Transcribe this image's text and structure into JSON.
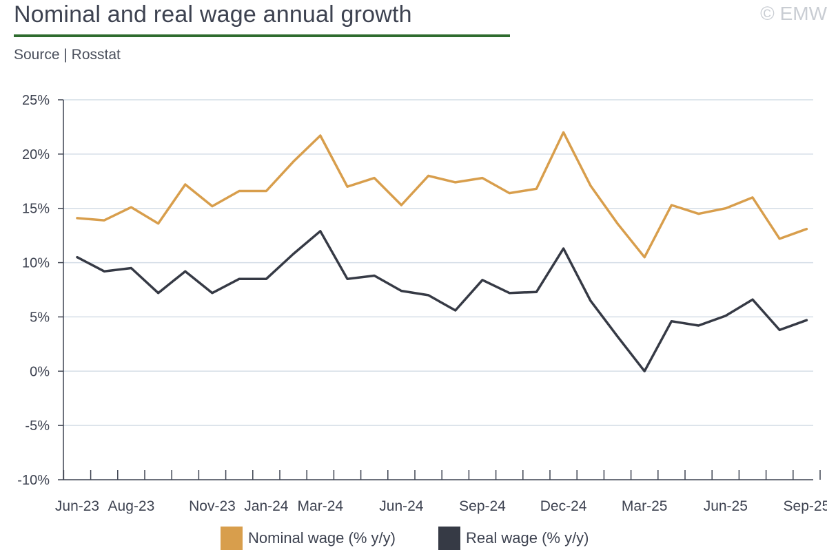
{
  "header": {
    "title": "Nominal and real wage annual growth",
    "source": "Source | Rosstat",
    "copyright": "© EMW"
  },
  "colors": {
    "nominal": "#d89e4c",
    "real": "#363a45",
    "grid": "#d4dde6",
    "axis": "#3d4250",
    "accent_rule": "#2e6b2e"
  },
  "chart_data": {
    "type": "line",
    "title": "Nominal and real wage annual growth",
    "xlabel": "",
    "ylabel": "",
    "ylim": [
      -10,
      25
    ],
    "yticks": [
      -10,
      -5,
      0,
      5,
      10,
      15,
      20,
      25
    ],
    "ytick_labels": [
      "-10%",
      "-5%",
      "0%",
      "5%",
      "10%",
      "15%",
      "20%",
      "25%"
    ],
    "x": [
      "Jun-23",
      "Jul-23",
      "Aug-23",
      "Sep-23",
      "Oct-23",
      "Nov-23",
      "Dec-23",
      "Jan-24",
      "Feb-24",
      "Mar-24",
      "Apr-24",
      "May-24",
      "Jun-24",
      "Jul-24",
      "Aug-24",
      "Sep-24",
      "Oct-24",
      "Nov-24",
      "Dec-24",
      "Jan-25",
      "Feb-25",
      "Mar-25",
      "Apr-25",
      "May-25",
      "Jun-25",
      "Jul-25",
      "Aug-25",
      "Sep-25"
    ],
    "xtick_labels": [
      {
        "index": 0,
        "label": "Jun-23"
      },
      {
        "index": 2,
        "label": "Aug-23"
      },
      {
        "index": 5,
        "label": "Nov-23"
      },
      {
        "index": 7,
        "label": "Jan-24"
      },
      {
        "index": 9,
        "label": "Mar-24"
      },
      {
        "index": 12,
        "label": "Jun-24"
      },
      {
        "index": 15,
        "label": "Sep-24"
      },
      {
        "index": 18,
        "label": "Dec-24"
      },
      {
        "index": 21,
        "label": "Mar-25"
      },
      {
        "index": 24,
        "label": "Jun-25"
      },
      {
        "index": 27,
        "label": "Sep-25"
      }
    ],
    "series": [
      {
        "name": "Nominal wage (% y/y)",
        "key": "nominal",
        "values": [
          14.1,
          13.9,
          15.1,
          13.6,
          17.2,
          15.2,
          16.6,
          16.6,
          19.3,
          21.7,
          17.0,
          17.8,
          15.3,
          18.0,
          17.4,
          17.8,
          16.4,
          16.8,
          22.0,
          17.1,
          13.6,
          10.5,
          15.3,
          14.5,
          15.0,
          16.0,
          12.2,
          13.1
        ]
      },
      {
        "name": "Real wage (% y/y)",
        "key": "real",
        "values": [
          10.5,
          9.2,
          9.5,
          7.2,
          9.2,
          7.2,
          8.5,
          8.5,
          10.8,
          12.9,
          8.5,
          8.8,
          7.4,
          7.0,
          5.6,
          8.4,
          7.2,
          7.3,
          11.3,
          6.5,
          3.2,
          0.0,
          4.6,
          4.2,
          5.1,
          6.6,
          3.8,
          4.7
        ]
      }
    ],
    "legend": "bottom-center"
  }
}
